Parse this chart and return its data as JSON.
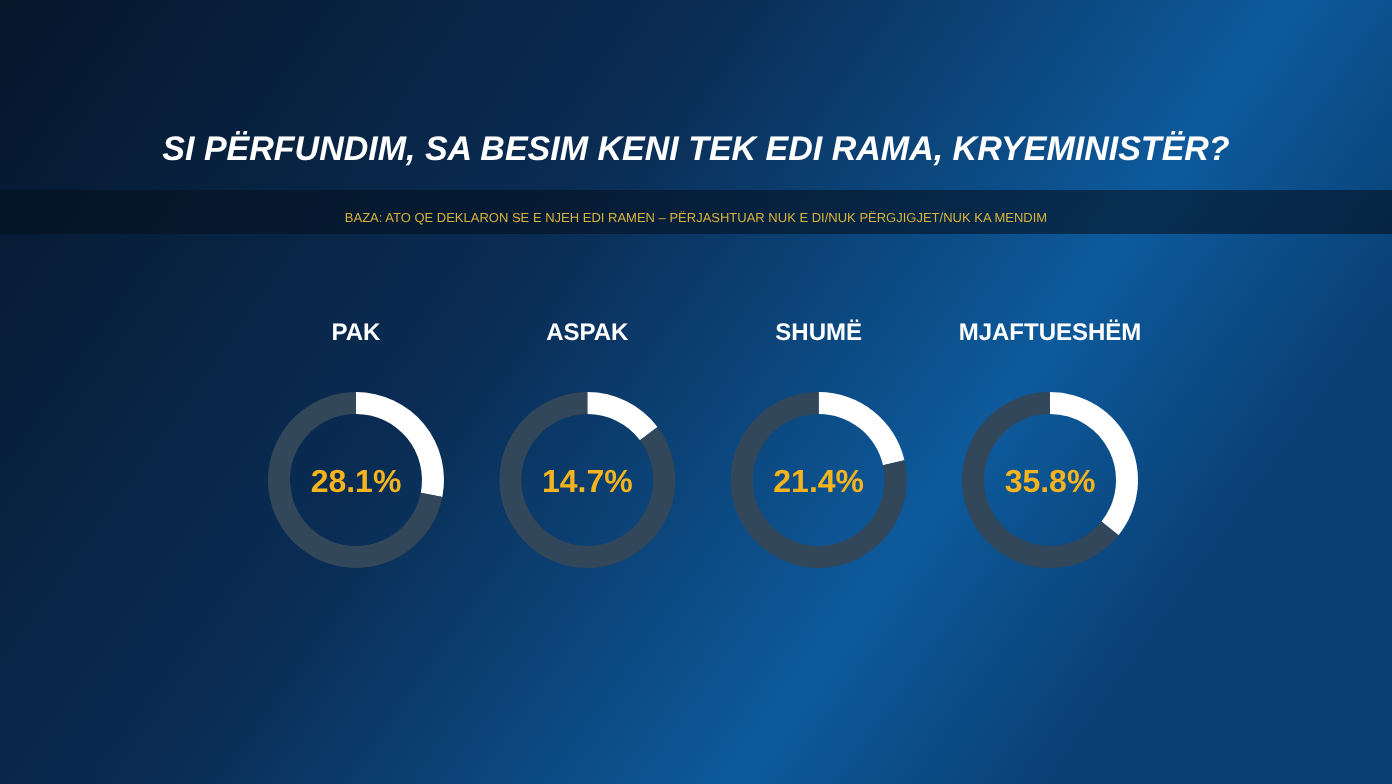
{
  "chart_data": [
    {
      "type": "other",
      "title": "SI PËRFUNDIM, SA BESIM KENI TEK EDI RAMA, KRYEMINISTËR?",
      "subtitle": "BAZA: ATO QE DEKLARON SE E NJEH EDI RAMEN – PËRJASHTUAR NUK E DI/NUK PËRGJIGJET/NUK KA MENDIM"
    },
    {
      "type": "donut",
      "title": "PAK",
      "categories": [
        null,
        null
      ],
      "values": [
        28.1,
        71.9
      ],
      "colors": [
        "#ffffff",
        "#33475a"
      ],
      "annotations": [
        "28.1%"
      ]
    },
    {
      "type": "donut",
      "title": "ASPAK",
      "categories": [
        null,
        null
      ],
      "values": [
        14.7,
        85.3
      ],
      "colors": [
        "#ffffff",
        "#33475a"
      ],
      "annotations": [
        "14.7%"
      ]
    },
    {
      "type": "donut",
      "title": "SHUMË",
      "categories": [
        null,
        null
      ],
      "values": [
        21.4,
        78.6
      ],
      "colors": [
        "#ffffff",
        "#33475a"
      ],
      "annotations": [
        "21.4%"
      ]
    },
    {
      "type": "donut",
      "title": "MJAFTUESHËM",
      "categories": [
        null,
        null
      ],
      "values": [
        35.8,
        64.2
      ],
      "colors": [
        "#ffffff",
        "#33475a"
      ],
      "annotations": [
        "35.8%"
      ]
    }
  ]
}
